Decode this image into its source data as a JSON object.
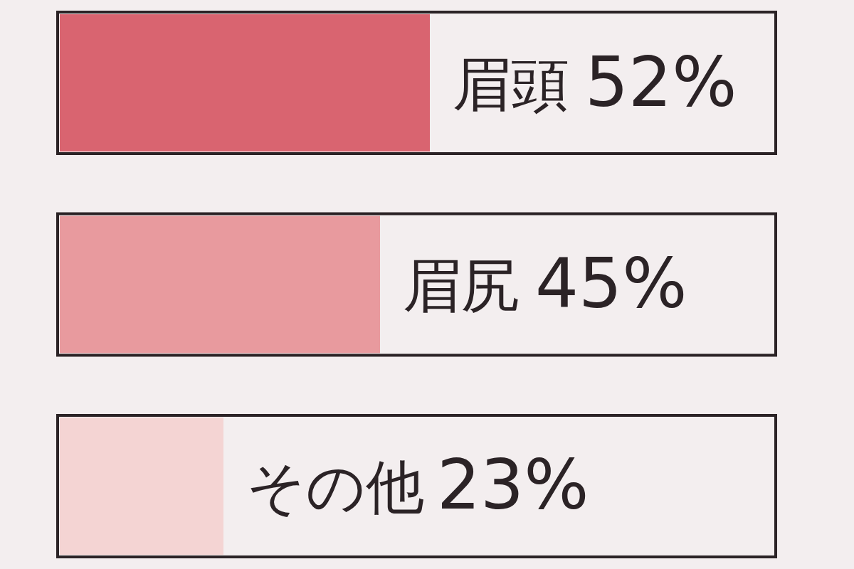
{
  "chart_data": {
    "type": "bar",
    "orientation": "horizontal",
    "categories": [
      "眉頭",
      "眉尻",
      "その他"
    ],
    "values": [
      52,
      45,
      23
    ],
    "colors": [
      "#d96470",
      "#e89a9e",
      "#f4d4d3"
    ],
    "value_labels": [
      "52%",
      "45%",
      "23%"
    ],
    "xlim": [
      0,
      100
    ],
    "tick_labels": false
  }
}
